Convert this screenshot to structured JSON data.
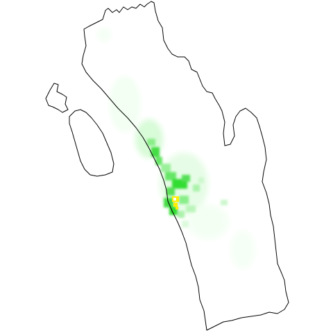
{
  "map": {
    "style": {
      "background": "#ffffff",
      "outline_color": "#000000",
      "heat_low": "#e8ffe8",
      "heat_mid": "#22dd22",
      "heat_high": "#ffee00",
      "heat_peak": "#ffffff"
    },
    "regions": [
      "mainland",
      "northern-island",
      "southern-island"
    ],
    "legend": null
  }
}
